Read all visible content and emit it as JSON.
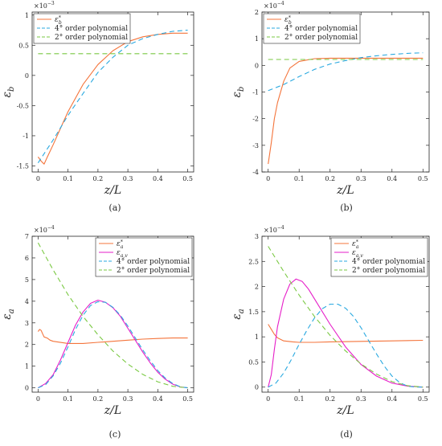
{
  "figure": {
    "panels": [
      {
        "caption": "(a)",
        "exponent_base": "×10",
        "exponent_power": "−3"
      },
      {
        "caption": "(b)",
        "exponent_base": "×10",
        "exponent_power": "−4"
      },
      {
        "caption": "(c)",
        "exponent_base": "×10",
        "exponent_power": "−4"
      },
      {
        "caption": "(d)",
        "exponent_base": "×10",
        "exponent_power": "−4"
      }
    ]
  },
  "chart_data": [
    {
      "type": "line",
      "panel": "(a)",
      "exponent_label": "×10⁻³",
      "xlabel": "z/L",
      "ylabel": "ε_b",
      "ylabel_main": "ε",
      "ylabel_sub": "b",
      "xlim": [
        -0.02,
        0.52
      ],
      "ylim": [
        -1.6,
        1.05
      ],
      "xticks": [
        0,
        0.1,
        0.2,
        0.3,
        0.4,
        0.5
      ],
      "xtick_labels": [
        "0",
        "0.1",
        "0.2",
        "0.3",
        "0.4",
        "0.5"
      ],
      "yticks": [
        -1.5,
        -1,
        -0.5,
        0,
        0.5,
        1
      ],
      "ytick_labels": [
        "-1.5",
        "-1",
        "-0.5",
        "0",
        "0.5",
        "1"
      ],
      "legend_position": "top-left",
      "grid": false,
      "series": [
        {
          "name": "ε*b",
          "label_main": "ε",
          "label_sub": "b",
          "label_sup": "*",
          "color": "#f4743b",
          "dash": "",
          "x": [
            0,
            0.01,
            0.02,
            0.03,
            0.05,
            0.08,
            0.1,
            0.15,
            0.2,
            0.25,
            0.3,
            0.35,
            0.4,
            0.45,
            0.5
          ],
          "y": [
            -1.35,
            -1.42,
            -1.47,
            -1.36,
            -1.15,
            -0.82,
            -0.6,
            -0.15,
            0.18,
            0.41,
            0.56,
            0.64,
            0.68,
            0.7,
            0.7
          ]
        },
        {
          "name": "4° order polynomial",
          "color": "#2aa9e0",
          "dash": "6,4",
          "x": [
            0,
            0.05,
            0.1,
            0.15,
            0.2,
            0.25,
            0.3,
            0.35,
            0.4,
            0.45,
            0.5
          ],
          "y": [
            -1.45,
            -1.07,
            -0.66,
            -0.3,
            0.05,
            0.3,
            0.5,
            0.61,
            0.68,
            0.73,
            0.75
          ]
        },
        {
          "name": "2° order polynomial",
          "color": "#7ac943",
          "dash": "6,4",
          "x": [
            0,
            0.5
          ],
          "y": [
            0.36,
            0.36
          ]
        }
      ]
    },
    {
      "type": "line",
      "panel": "(b)",
      "exponent_label": "×10⁻⁴",
      "xlabel": "z/L",
      "ylabel": "ε_b",
      "ylabel_main": "ε",
      "ylabel_sub": "b",
      "xlim": [
        -0.02,
        0.52
      ],
      "ylim": [
        -4,
        2
      ],
      "xticks": [
        0,
        0.1,
        0.2,
        0.3,
        0.4,
        0.5
      ],
      "xtick_labels": [
        "0",
        "0.1",
        "0.2",
        "0.3",
        "0.4",
        "0.5"
      ],
      "yticks": [
        -4,
        -3,
        -2,
        -1,
        0,
        1,
        2
      ],
      "ytick_labels": [
        "-4",
        "-3",
        "-2",
        "-1",
        "0",
        "1",
        "2"
      ],
      "legend_position": "top-left",
      "grid": false,
      "series": [
        {
          "name": "ε*b",
          "label_main": "ε",
          "label_sub": "b",
          "label_sup": "*",
          "color": "#f4743b",
          "dash": "",
          "x": [
            0,
            0.01,
            0.02,
            0.03,
            0.05,
            0.07,
            0.1,
            0.15,
            0.2,
            0.3,
            0.4,
            0.5
          ],
          "y": [
            -3.7,
            -2.9,
            -2.0,
            -1.4,
            -0.6,
            -0.1,
            0.15,
            0.25,
            0.27,
            0.27,
            0.27,
            0.27
          ]
        },
        {
          "name": "4° order polynomial",
          "color": "#2aa9e0",
          "dash": "6,4",
          "x": [
            0,
            0.05,
            0.1,
            0.15,
            0.2,
            0.25,
            0.3,
            0.35,
            0.4,
            0.45,
            0.5
          ],
          "y": [
            -0.95,
            -0.72,
            -0.42,
            -0.15,
            0.05,
            0.18,
            0.29,
            0.36,
            0.41,
            0.45,
            0.47
          ]
        },
        {
          "name": "2° order polynomial",
          "color": "#7ac943",
          "dash": "6,4",
          "x": [
            0,
            0.5
          ],
          "y": [
            0.22,
            0.22
          ]
        }
      ]
    },
    {
      "type": "line",
      "panel": "(c)",
      "exponent_label": "×10⁻⁴",
      "xlabel": "z/L",
      "ylabel": "ε_a",
      "ylabel_main": "ε",
      "ylabel_sub": "a",
      "xlim": [
        -0.02,
        0.52
      ],
      "ylim": [
        -0.2,
        7
      ],
      "xticks": [
        0,
        0.1,
        0.2,
        0.3,
        0.4,
        0.5
      ],
      "xtick_labels": [
        "0",
        "0.1",
        "0.2",
        "0.3",
        "0.4",
        "0.5"
      ],
      "yticks": [
        0,
        1,
        2,
        3,
        4,
        5,
        6,
        7
      ],
      "ytick_labels": [
        "0",
        "1",
        "2",
        "3",
        "4",
        "5",
        "6",
        "7"
      ],
      "legend_position": "top-right",
      "grid": false,
      "series": [
        {
          "name": "ε*a",
          "label_main": "ε",
          "label_sub": "a",
          "label_sup": "*",
          "color": "#f4743b",
          "dash": "",
          "x": [
            0,
            0.005,
            0.01,
            0.015,
            0.02,
            0.03,
            0.04,
            0.05,
            0.1,
            0.15,
            0.2,
            0.25,
            0.3,
            0.35,
            0.4,
            0.45,
            0.5
          ],
          "y": [
            2.6,
            2.7,
            2.65,
            2.5,
            2.35,
            2.3,
            2.2,
            2.15,
            2.05,
            2.05,
            2.1,
            2.15,
            2.2,
            2.25,
            2.28,
            2.3,
            2.3
          ]
        },
        {
          "name": "εa,v",
          "label_main": "ε",
          "label_sub": "a,v",
          "label_sup": "",
          "color": "#e61ec8",
          "dash": "",
          "x": [
            0,
            0.025,
            0.05,
            0.075,
            0.1,
            0.125,
            0.15,
            0.175,
            0.2,
            0.225,
            0.25,
            0.275,
            0.3,
            0.325,
            0.35,
            0.375,
            0.4,
            0.425,
            0.45,
            0.475,
            0.5
          ],
          "y": [
            0,
            0.2,
            0.6,
            1.3,
            2.1,
            2.9,
            3.5,
            3.9,
            4.05,
            3.95,
            3.7,
            3.3,
            2.75,
            2.2,
            1.65,
            1.15,
            0.72,
            0.4,
            0.17,
            0.04,
            0
          ]
        },
        {
          "name": "4° order polynomial",
          "color": "#2aa9e0",
          "dash": "6,4",
          "x": [
            0,
            0.025,
            0.05,
            0.075,
            0.1,
            0.125,
            0.15,
            0.175,
            0.2,
            0.225,
            0.25,
            0.275,
            0.3,
            0.325,
            0.35,
            0.375,
            0.4,
            0.425,
            0.45,
            0.475,
            0.5
          ],
          "y": [
            0,
            0.15,
            0.55,
            1.15,
            1.9,
            2.7,
            3.35,
            3.8,
            3.98,
            3.95,
            3.72,
            3.35,
            2.85,
            2.3,
            1.75,
            1.25,
            0.8,
            0.45,
            0.2,
            0.05,
            0
          ]
        },
        {
          "name": "2° order polynomial",
          "color": "#7ac943",
          "dash": "6,4",
          "x": [
            0,
            0.05,
            0.1,
            0.15,
            0.2,
            0.25,
            0.3,
            0.35,
            0.4,
            0.45,
            0.5
          ],
          "y": [
            6.7,
            5.45,
            4.3,
            3.3,
            2.45,
            1.7,
            1.1,
            0.62,
            0.28,
            0.07,
            0
          ]
        }
      ]
    },
    {
      "type": "line",
      "panel": "(d)",
      "exponent_label": "×10⁻⁴",
      "xlabel": "z/L",
      "ylabel": "ε_a",
      "ylabel_main": "ε",
      "ylabel_sub": "a",
      "xlim": [
        -0.02,
        0.52
      ],
      "ylim": [
        -0.1,
        3
      ],
      "xticks": [
        0,
        0.1,
        0.2,
        0.3,
        0.4,
        0.5
      ],
      "xtick_labels": [
        "0",
        "0.1",
        "0.2",
        "0.3",
        "0.4",
        "0.5"
      ],
      "yticks": [
        0,
        0.5,
        1,
        1.5,
        2,
        2.5,
        3
      ],
      "ytick_labels": [
        "0",
        "0.5",
        "1",
        "1.5",
        "2",
        "2.5",
        "3"
      ],
      "legend_position": "top-right",
      "grid": false,
      "series": [
        {
          "name": "ε*a",
          "label_main": "ε",
          "label_sub": "a",
          "label_sup": "*",
          "color": "#f4743b",
          "dash": "",
          "x": [
            0,
            0.01,
            0.02,
            0.03,
            0.05,
            0.08,
            0.1,
            0.15,
            0.2,
            0.3,
            0.4,
            0.5
          ],
          "y": [
            1.25,
            1.15,
            1.05,
            0.98,
            0.92,
            0.9,
            0.89,
            0.89,
            0.9,
            0.91,
            0.92,
            0.93
          ]
        },
        {
          "name": "εa,v",
          "label_main": "ε",
          "label_sub": "a,v",
          "label_sup": "",
          "color": "#e61ec8",
          "dash": "",
          "x": [
            0,
            0.01,
            0.02,
            0.03,
            0.05,
            0.07,
            0.09,
            0.11,
            0.13,
            0.15,
            0.2,
            0.25,
            0.3,
            0.35,
            0.4,
            0.45,
            0.5
          ],
          "y": [
            0,
            0.25,
            0.75,
            1.2,
            1.75,
            2.05,
            2.15,
            2.1,
            1.95,
            1.75,
            1.25,
            0.8,
            0.45,
            0.22,
            0.08,
            0.02,
            0
          ]
        },
        {
          "name": "4° order polynomial",
          "color": "#2aa9e0",
          "dash": "6,4",
          "x": [
            0,
            0.025,
            0.05,
            0.075,
            0.1,
            0.125,
            0.15,
            0.175,
            0.2,
            0.225,
            0.25,
            0.275,
            0.3,
            0.325,
            0.35,
            0.375,
            0.4,
            0.425,
            0.45,
            0.475,
            0.5
          ],
          "y": [
            0,
            0.08,
            0.28,
            0.55,
            0.85,
            1.13,
            1.38,
            1.56,
            1.65,
            1.65,
            1.57,
            1.41,
            1.18,
            0.92,
            0.66,
            0.42,
            0.22,
            0.09,
            0.02,
            0,
            0
          ]
        },
        {
          "name": "2° order polynomial",
          "color": "#7ac943",
          "dash": "6,4",
          "x": [
            0,
            0.05,
            0.1,
            0.15,
            0.2,
            0.25,
            0.3,
            0.35,
            0.4,
            0.45,
            0.5
          ],
          "y": [
            2.8,
            2.3,
            1.83,
            1.4,
            1.03,
            0.72,
            0.46,
            0.26,
            0.11,
            0.03,
            0
          ]
        }
      ]
    }
  ]
}
